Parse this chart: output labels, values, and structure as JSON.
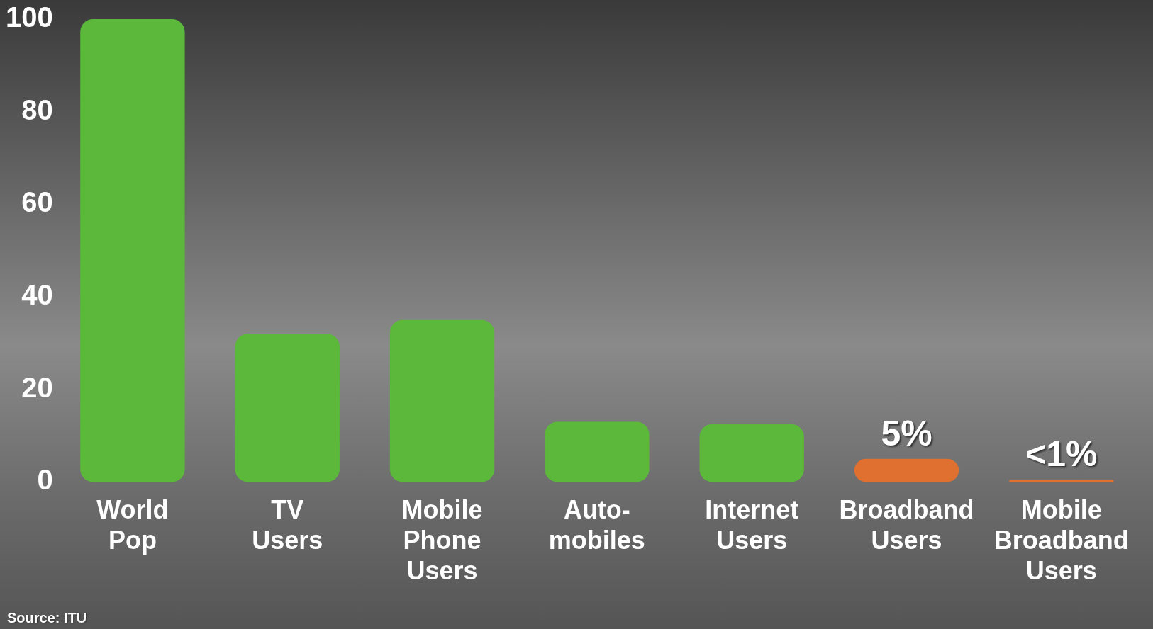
{
  "chart_data": {
    "type": "bar",
    "categories": [
      "World Pop",
      "TV Users",
      "Mobile Phone Users",
      "Auto-mobiles",
      "Internet Users",
      "Broadband Users",
      "Mobile Broadband Users"
    ],
    "values": [
      100,
      32,
      35,
      13,
      12.5,
      5,
      0.5
    ],
    "colors": [
      "#5cb83a",
      "#5cb83a",
      "#5cb83a",
      "#5cb83a",
      "#5cb83a",
      "#e07030",
      "#e07030"
    ],
    "value_labels": [
      null,
      null,
      null,
      null,
      null,
      "5%",
      "<1%"
    ],
    "ylim": [
      0,
      100
    ],
    "yticks": [
      0,
      20,
      40,
      60,
      80,
      100
    ],
    "grid": false,
    "legend": false,
    "annotations": [
      "Source: ITU"
    ]
  }
}
